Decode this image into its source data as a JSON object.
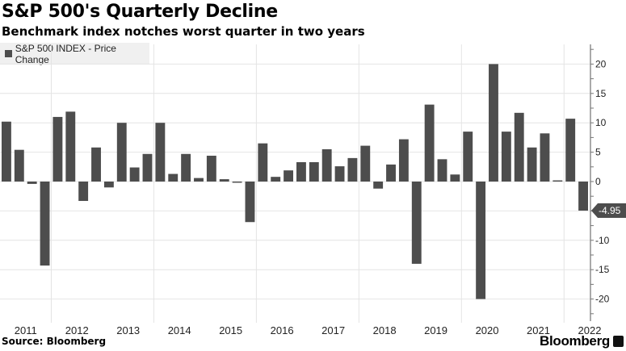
{
  "header": {
    "title": "S&P 500's Quarterly Decline",
    "subtitle": "Benchmark index notches worst quarter in two years"
  },
  "legend": {
    "label": "S&P 500 INDEX - Price Change"
  },
  "footer": {
    "source": "Source: Bloomberg",
    "brand": "Bloomberg"
  },
  "chart_data": {
    "type": "bar",
    "title": "S&P 500's Quarterly Decline",
    "subtitle": "Benchmark index notches worst quarter in two years",
    "series": [
      {
        "name": "S&P 500 INDEX - Price Change",
        "color": "#4d4d4d",
        "values": [
          10.2,
          5.4,
          -0.4,
          -14.3,
          11.0,
          11.9,
          -3.3,
          5.8,
          -1.0,
          10.0,
          2.4,
          4.7,
          10.0,
          1.3,
          4.7,
          0.6,
          4.4,
          0.4,
          -0.2,
          -6.9,
          6.5,
          0.8,
          1.9,
          3.3,
          3.3,
          5.5,
          2.6,
          4.0,
          6.1,
          -1.2,
          2.9,
          7.2,
          -14.0,
          13.1,
          3.8,
          1.2,
          8.5,
          -20.0,
          20.0,
          8.5,
          11.7,
          5.8,
          8.2,
          0.2,
          10.7,
          -4.95
        ]
      }
    ],
    "x_tick_labels": [
      "2011",
      "2012",
      "2013",
      "2014",
      "2015",
      "2016",
      "2017",
      "2018",
      "2019",
      "2020",
      "2021",
      "2022"
    ],
    "y_ticks": [
      20,
      15,
      10,
      5,
      0,
      -5,
      -10,
      -15,
      -20
    ],
    "y_tick_labels": [
      "20",
      "15",
      "10",
      "5",
      "0",
      "",
      "-10",
      "-15",
      "-20"
    ],
    "ylim": [
      -23.5,
      23.5
    ],
    "last_value_label": "-4.95",
    "grid": true,
    "legend_position": "top-left",
    "xlabel": "",
    "ylabel": ""
  }
}
